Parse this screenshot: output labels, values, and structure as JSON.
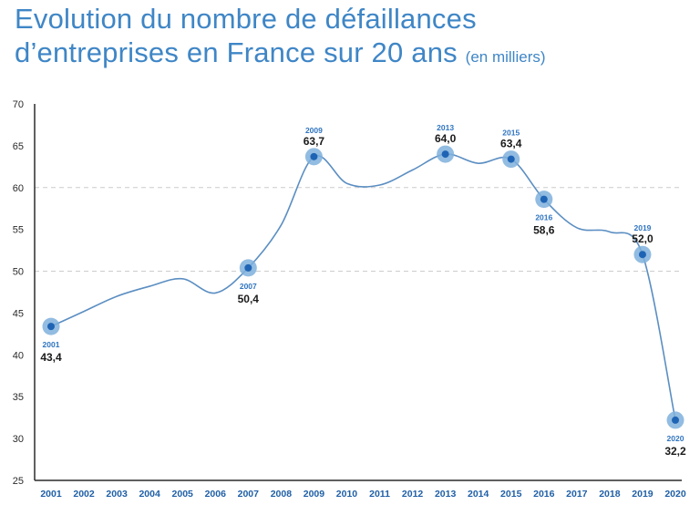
{
  "title": {
    "line1": "Evolution du nombre de défaillances",
    "line2": "d’entreprises en France sur 20 ans",
    "unit": "(en milliers)"
  },
  "colors": {
    "title": "#3f86c6",
    "line": "#5b8ec2",
    "marker_halo": "#7fb0dc",
    "marker_core": "#1f64b4",
    "axis": "#2b2b2b",
    "grid": "#cccccc"
  },
  "chart_data": {
    "type": "line",
    "title": "Evolution du nombre de défaillances d’entreprises en France sur 20 ans (en milliers)",
    "xlabel": "",
    "ylabel": "",
    "ylim": [
      25,
      70
    ],
    "yticks": [
      25,
      30,
      35,
      40,
      45,
      50,
      55,
      60,
      65,
      70
    ],
    "grid": "dashed at 50 and 60",
    "x": [
      "2001",
      "2002",
      "2003",
      "2004",
      "2005",
      "2006",
      "2007",
      "2008",
      "2009",
      "2010",
      "2011",
      "2012",
      "2013",
      "2014",
      "2015",
      "2016",
      "2017",
      "2018",
      "2019",
      "2020"
    ],
    "series": [
      {
        "values": [
          43.4,
          45.2,
          47.0,
          48.2,
          49.1,
          47.4,
          50.4,
          55.5,
          63.7,
          60.5,
          60.3,
          62.1,
          64.0,
          62.9,
          63.4,
          58.6,
          55.2,
          54.7,
          52.0,
          32.2
        ]
      }
    ],
    "annotations": [
      {
        "year": "2001",
        "value": "43,4",
        "position": "below"
      },
      {
        "year": "2007",
        "value": "50,4",
        "position": "below"
      },
      {
        "year": "2009",
        "value": "63,7",
        "position": "above"
      },
      {
        "year": "2013",
        "value": "64,0",
        "position": "above"
      },
      {
        "year": "2015",
        "value": "63,4",
        "position": "above"
      },
      {
        "year": "2016",
        "value": "58,6",
        "position": "below"
      },
      {
        "year": "2019",
        "value": "52,0",
        "position": "above"
      },
      {
        "year": "2020",
        "value": "32,2",
        "position": "below"
      }
    ]
  }
}
